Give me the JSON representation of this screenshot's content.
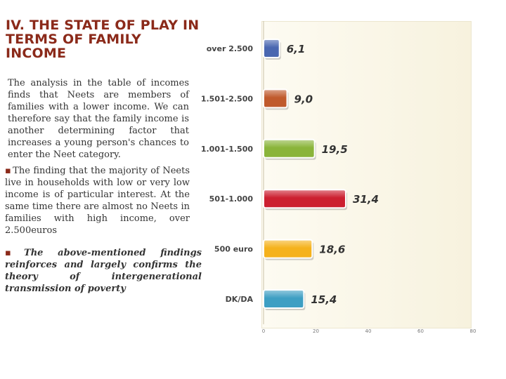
{
  "slide": {
    "title": "IV. THE STATE OF PLAY IN TERMS OF FAMILY INCOME",
    "paragraph": "The analysis in the table of incomes finds that Neets are members of families with a lower income. We can therefore say that the family income is another determining factor that increases a young person's chances to enter the Neet category.",
    "bullet_marker": "▪",
    "bullet1": "The finding that the majority of Neets live in households with low or very low income is of particular interest. At the same time there are almost no Neets in families with high income, over 2.500euros",
    "bullet2": "The above-mentioned findings reinforces and largely confirms the theory of intergenerational transmission of poverty"
  },
  "chart_data": {
    "type": "bar",
    "orientation": "horizontal",
    "categories": [
      "over 2.500",
      "1.501-2.500",
      "1.001-1.500",
      "501-1.000",
      "500 euro",
      "DK/DA"
    ],
    "values": [
      6.1,
      9.0,
      19.5,
      31.4,
      18.6,
      15.4
    ],
    "data_labels": [
      "6,1",
      "9,0",
      "19,5",
      "31,4",
      "18,6",
      "15,4"
    ],
    "colors": [
      "#4a67b0",
      "#c05a2c",
      "#8ab43a",
      "#cc2030",
      "#f5b21c",
      "#3e9fc3"
    ],
    "x_ticks": [
      "0",
      "20",
      "40",
      "60",
      "80"
    ],
    "xlim": [
      0,
      80
    ],
    "title": "",
    "xlabel": "",
    "ylabel": "",
    "grid": false,
    "legend": "none"
  }
}
